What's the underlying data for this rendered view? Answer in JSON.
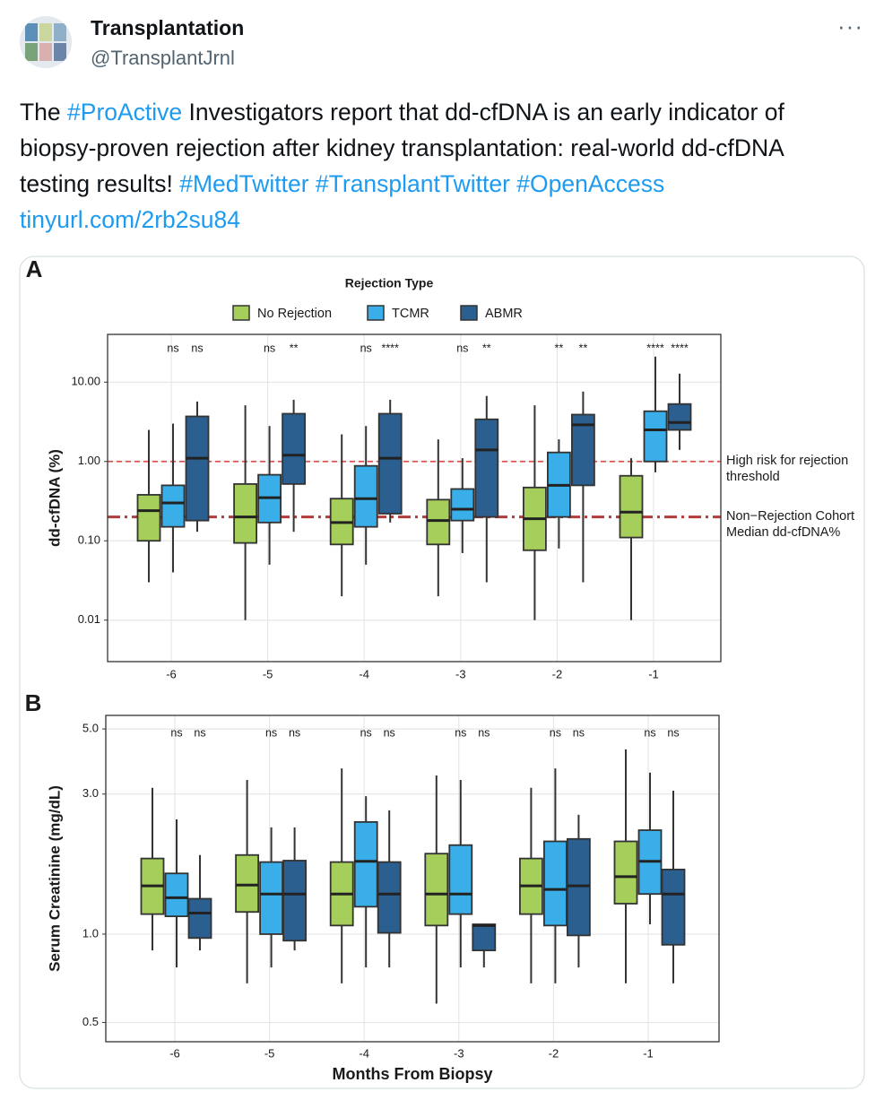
{
  "header": {
    "name": "Transplantation",
    "handle": "@TransplantJrnl",
    "more": "···"
  },
  "text_segments": [
    {
      "text": "The ",
      "kind": "plain"
    },
    {
      "text": "#ProActive",
      "kind": "link"
    },
    {
      "text": " Investigators report that dd-cfDNA is an early indicator of biopsy-proven rejection after kidney transplantation: real-world dd-cfDNA testing results! ",
      "kind": "plain"
    },
    {
      "text": "#MedTwitter",
      "kind": "link"
    },
    {
      "text": "#TransplantTwitter",
      "kind": "link"
    },
    {
      "text": "#OpenAccess",
      "kind": "link"
    },
    {
      "text": "tinyurl.com/2rb2su84",
      "kind": "link"
    }
  ],
  "chart_data": [
    {
      "type": "box",
      "panel": "A",
      "ylabel": "dd-cfDNA (%)",
      "legend_title": "Rejection Type",
      "log_scale": true,
      "grid": true,
      "categories": [
        "-6",
        "-5",
        "-4",
        "-3",
        "-2",
        "-1"
      ],
      "ylim": [
        0.003,
        40
      ],
      "yticks": [
        {
          "value": 10,
          "label": "10.00"
        },
        {
          "value": 1,
          "label": "1.00"
        },
        {
          "value": 0.1,
          "label": "0.10"
        },
        {
          "value": 0.01,
          "label": "0.01"
        }
      ],
      "series": [
        {
          "name": "No Rejection",
          "color": "#a6ce5a",
          "values": [
            {
              "low": 0.03,
              "q1": 0.1,
              "median": 0.24,
              "q3": 0.38,
              "high": 2.5
            },
            {
              "low": 0.01,
              "q1": 0.094,
              "median": 0.2,
              "q3": 0.52,
              "high": 5.1
            },
            {
              "low": 0.02,
              "q1": 0.09,
              "median": 0.17,
              "q3": 0.34,
              "high": 2.2
            },
            {
              "low": 0.02,
              "q1": 0.09,
              "median": 0.18,
              "q3": 0.33,
              "high": 1.9
            },
            {
              "low": 0.01,
              "q1": 0.076,
              "median": 0.19,
              "q3": 0.47,
              "high": 5.1
            },
            {
              "low": 0.01,
              "q1": 0.11,
              "median": 0.23,
              "q3": 0.66,
              "high": 1.1
            }
          ]
        },
        {
          "name": "TCMR",
          "color": "#3aaee8",
          "values": [
            {
              "low": 0.04,
              "q1": 0.15,
              "median": 0.3,
              "q3": 0.5,
              "high": 3.0
            },
            {
              "low": 0.05,
              "q1": 0.17,
              "median": 0.35,
              "q3": 0.68,
              "high": 2.8
            },
            {
              "low": 0.05,
              "q1": 0.15,
              "median": 0.34,
              "q3": 0.88,
              "high": 2.8
            },
            {
              "low": 0.07,
              "q1": 0.18,
              "median": 0.25,
              "q3": 0.45,
              "high": 1.1
            },
            {
              "low": 0.08,
              "q1": 0.2,
              "median": 0.5,
              "q3": 1.3,
              "high": 1.9
            },
            {
              "low": 0.73,
              "q1": 1.0,
              "median": 2.5,
              "q3": 4.3,
              "high": 21
            }
          ]
        },
        {
          "name": "ABMR",
          "color": "#2b5f8f",
          "values": [
            {
              "low": 0.13,
              "q1": 0.18,
              "median": 1.1,
              "q3": 3.7,
              "high": 5.7
            },
            {
              "low": 0.13,
              "q1": 0.52,
              "median": 1.2,
              "q3": 4.0,
              "high": 6.0
            },
            {
              "low": 0.17,
              "q1": 0.22,
              "median": 1.1,
              "q3": 4.0,
              "high": 6.0
            },
            {
              "low": 0.03,
              "q1": 0.2,
              "median": 1.4,
              "q3": 3.4,
              "high": 6.7
            },
            {
              "low": 0.03,
              "q1": 0.5,
              "median": 2.9,
              "q3": 3.9,
              "high": 7.6
            },
            {
              "low": 1.4,
              "q1": 2.5,
              "median": 3.1,
              "q3": 5.3,
              "high": 12.8
            }
          ]
        }
      ],
      "annotations": [
        [
          "ns",
          "ns"
        ],
        [
          "ns",
          "**"
        ],
        [
          "ns",
          "****"
        ],
        [
          "ns",
          "**"
        ],
        [
          "**",
          "**"
        ],
        [
          "****",
          "****"
        ]
      ],
      "hlines": [
        {
          "value": 1,
          "label": "High risk for rejection threshold",
          "color": "#d9534f",
          "style": "dashed"
        },
        {
          "value": 0.2,
          "label": "Non−Rejection Cohort Median dd-cfDNA%",
          "color": "#b23b3b",
          "style": "dashdot"
        }
      ]
    },
    {
      "type": "box",
      "panel": "B",
      "ylabel": "Serum Creatinine (mg/dL)",
      "xlabel": "Months From Biopsy",
      "log_scale": true,
      "grid": true,
      "categories": [
        "-6",
        "-5",
        "-4",
        "-3",
        "-2",
        "-1"
      ],
      "ylim": [
        0.43,
        5.56
      ],
      "yticks": [
        {
          "value": 5,
          "label": "5.0"
        },
        {
          "value": 3,
          "label": "3.0"
        },
        {
          "value": 1,
          "label": "1.0"
        },
        {
          "value": 0.5,
          "label": "0.5"
        }
      ],
      "series": [
        {
          "color": "#a6ce5a",
          "values": [
            {
              "low": 0.88,
              "q1": 1.17,
              "median": 1.46,
              "q3": 1.81,
              "high": 3.15
            },
            {
              "low": 0.68,
              "q1": 1.19,
              "median": 1.47,
              "q3": 1.86,
              "high": 3.35
            },
            {
              "low": 0.68,
              "q1": 1.07,
              "median": 1.37,
              "q3": 1.76,
              "high": 3.67
            },
            {
              "low": 0.58,
              "q1": 1.07,
              "median": 1.37,
              "q3": 1.88,
              "high": 3.47
            },
            {
              "low": 0.68,
              "q1": 1.17,
              "median": 1.46,
              "q3": 1.81,
              "high": 3.15
            },
            {
              "low": 0.68,
              "q1": 1.27,
              "median": 1.57,
              "q3": 2.07,
              "high": 4.26
            }
          ]
        },
        {
          "color": "#3aaee8",
          "values": [
            {
              "low": 0.77,
              "q1": 1.15,
              "median": 1.33,
              "q3": 1.61,
              "high": 2.46
            },
            {
              "low": 0.77,
              "q1": 1.0,
              "median": 1.37,
              "q3": 1.76,
              "high": 2.31
            },
            {
              "low": 0.77,
              "q1": 1.24,
              "median": 1.77,
              "q3": 2.41,
              "high": 2.95
            },
            {
              "low": 0.77,
              "q1": 1.17,
              "median": 1.37,
              "q3": 2.01,
              "high": 3.35
            },
            {
              "low": 0.68,
              "q1": 1.07,
              "median": 1.42,
              "q3": 2.07,
              "high": 3.67
            },
            {
              "low": 1.08,
              "q1": 1.37,
              "median": 1.77,
              "q3": 2.26,
              "high": 3.55
            }
          ]
        },
        {
          "color": "#2b5f8f",
          "values": [
            {
              "low": 0.88,
              "q1": 0.97,
              "median": 1.18,
              "q3": 1.32,
              "high": 1.86
            },
            {
              "low": 0.88,
              "q1": 0.95,
              "median": 1.37,
              "q3": 1.78,
              "high": 2.31
            },
            {
              "low": 0.77,
              "q1": 1.01,
              "median": 1.37,
              "q3": 1.76,
              "high": 2.64
            },
            {
              "low": 0.77,
              "q1": 0.88,
              "median": 1.07,
              "q3": 1.08,
              "high": 1.08
            },
            {
              "low": 0.77,
              "q1": 0.99,
              "median": 1.46,
              "q3": 2.11,
              "high": 2.55
            },
            {
              "low": 0.68,
              "q1": 0.92,
              "median": 1.37,
              "q3": 1.66,
              "high": 3.08
            }
          ]
        }
      ],
      "annotations": [
        [
          "ns",
          "ns"
        ],
        [
          "ns",
          "ns"
        ],
        [
          "ns",
          "ns"
        ],
        [
          "ns",
          "ns"
        ],
        [
          "ns",
          "ns"
        ],
        [
          "ns",
          "ns"
        ]
      ]
    }
  ]
}
